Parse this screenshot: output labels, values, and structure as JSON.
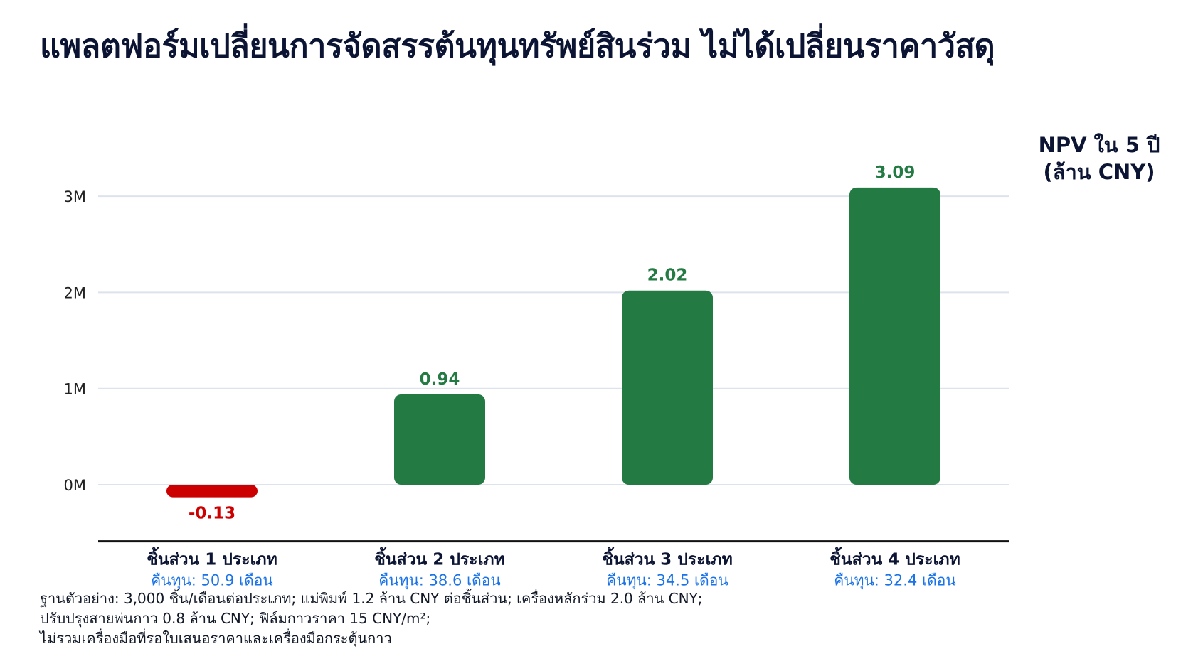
{
  "title": "แพลตฟอร์มเปลี่ยนการจัดสรรต้นทุนทรัพย์สินร่วม ไม่ได้เปลี่ยนราคาวัสดุ",
  "unit_label": [
    "NPV ใน 5 ปี",
    "(ล้าน CNY)"
  ],
  "chart_data": {
    "type": "bar",
    "categories": [
      "ชิ้นส่วน 1 ประเภท",
      "ชิ้นส่วน 2 ประเภท",
      "ชิ้นส่วน 3 ประเภท",
      "ชิ้นส่วน 4 ประเภท"
    ],
    "subcategories": [
      "คืนทุน: 50.9 เดือน",
      "คืนทุน: 38.6 เดือน",
      "คืนทุน: 34.5 เดือน",
      "คืนทุน: 32.4 เดือน"
    ],
    "values": [
      -0.13,
      0.94,
      2.02,
      3.09
    ],
    "value_labels": [
      "-0.13",
      "0.94",
      "2.02",
      "3.09"
    ],
    "yticks": [
      0,
      1,
      2,
      3
    ],
    "ytick_labels": [
      "0M",
      "1M",
      "2M",
      "3M"
    ],
    "ylim": [
      -0.5,
      3.5
    ],
    "grid": true,
    "colors": {
      "positive": "#237a42",
      "negative": "#cc0000",
      "subcategory": "#1a73e8",
      "grid": "#dde3ed",
      "axis": "#111111"
    }
  },
  "footnote": [
    "ฐานตัวอย่าง: 3,000 ชิ้น/เดือนต่อประเภท; แม่พิมพ์ 1.2 ล้าน CNY ต่อชิ้นส่วน; เครื่องหลักร่วม 2.0 ล้าน CNY;",
    "ปรับปรุงสายพ่นกาว 0.8 ล้าน CNY; ฟิล์มกาวราคา 15 CNY/m²;",
    "ไม่รวมเครื่องมือที่รอใบเสนอราคาและเครื่องมือกระตุ้นกาว"
  ]
}
